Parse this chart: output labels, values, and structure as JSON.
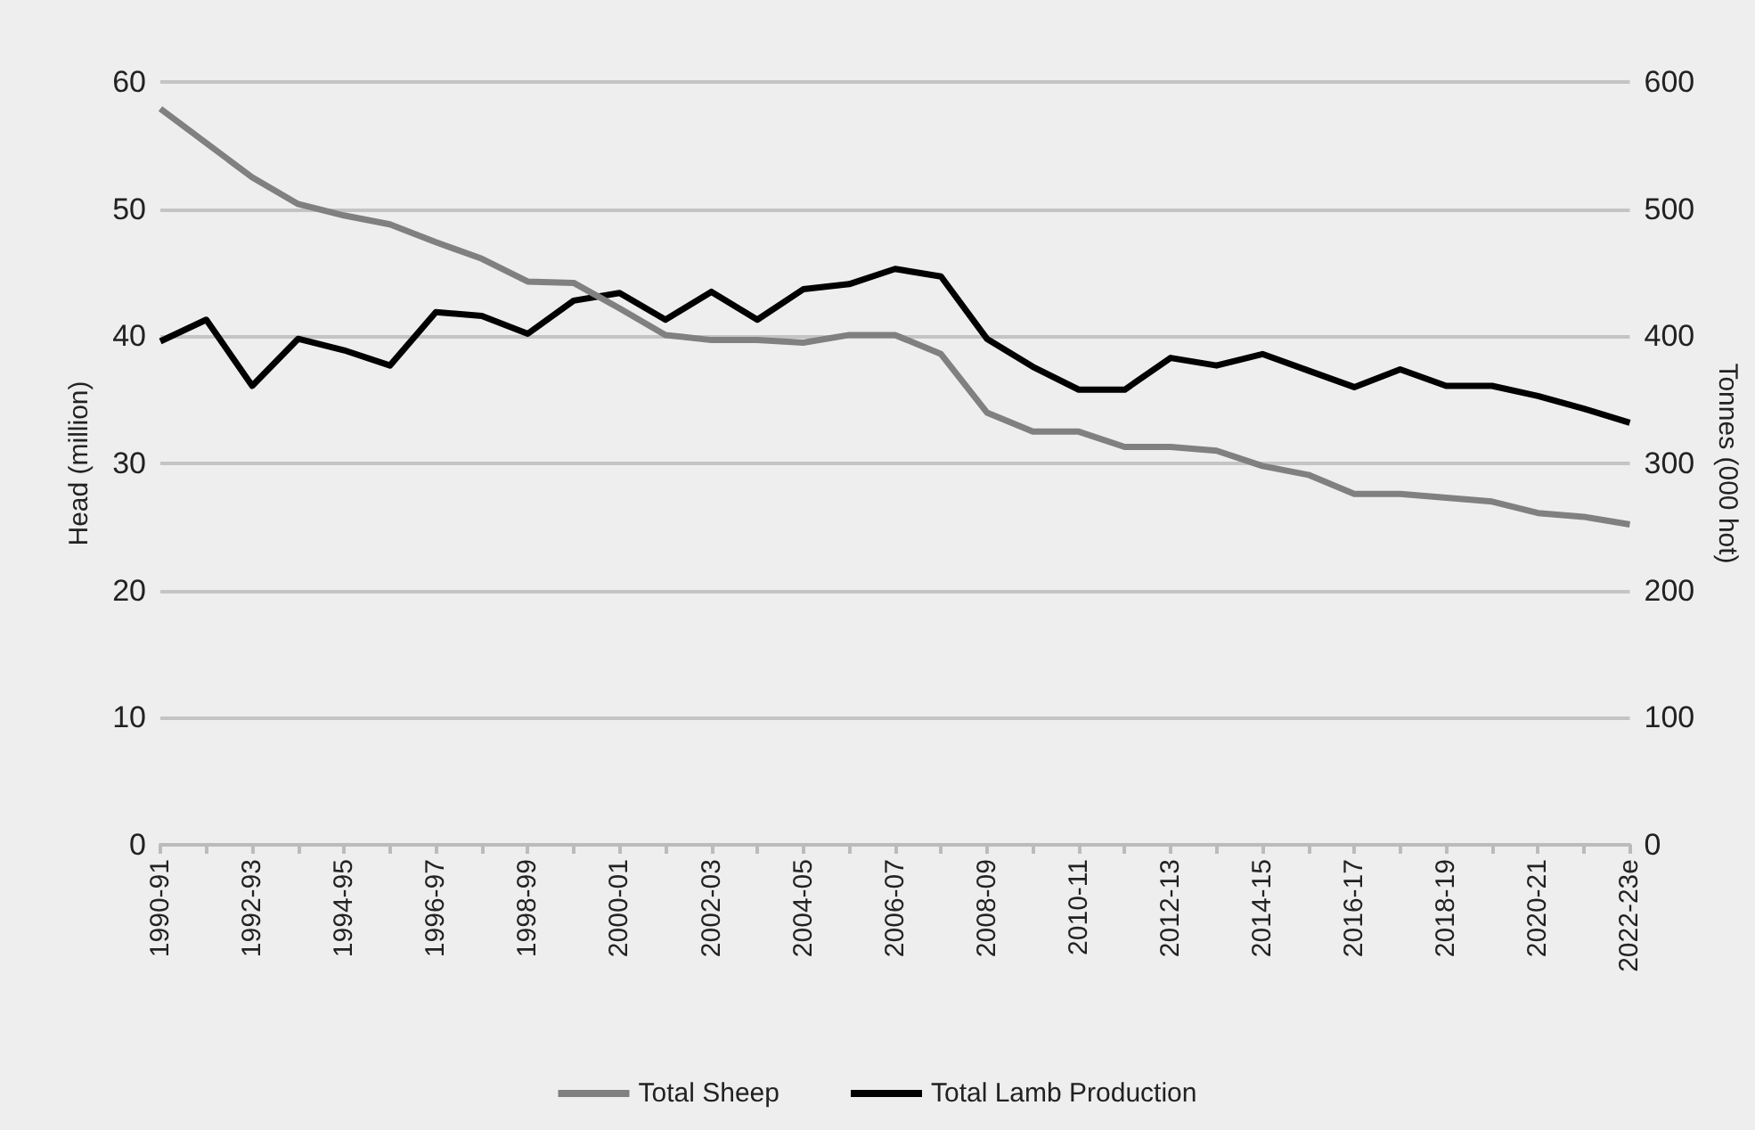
{
  "chart_data": {
    "type": "line",
    "ylabel": "Head (million)",
    "y2label": "Tonnes (000 hot)",
    "categories": [
      "1990-91",
      null,
      "1992-93",
      null,
      "1994-95",
      null,
      "1996-97",
      null,
      "1998-99",
      null,
      "2000-01",
      null,
      "2002-03",
      null,
      "2004-05",
      null,
      "2006-07",
      null,
      "2008-09",
      null,
      "2010-11",
      null,
      "2012-13",
      null,
      "2014-15",
      null,
      "2016-17",
      null,
      "2018-19",
      null,
      "2020-21",
      null,
      "2022-23e"
    ],
    "series": [
      {
        "name": "Total Sheep",
        "color": "#808080",
        "values": [
          57.9,
          55.2,
          52.5,
          50.4,
          49.5,
          48.8,
          47.4,
          46.1,
          44.3,
          44.2,
          42.2,
          40.1,
          39.7,
          39.7,
          39.5,
          40.1,
          40.1,
          38.6,
          34.0,
          32.5,
          32.5,
          31.3,
          31.3,
          31.0,
          29.8,
          29.1,
          27.6,
          27.6,
          27.3,
          27.0,
          26.1,
          25.8,
          25.2
        ]
      },
      {
        "name": "Total Lamb Production",
        "color": "#000000",
        "axis": "y2",
        "values": [
          396,
          413,
          361,
          398,
          389,
          377,
          419,
          416,
          402,
          428,
          434,
          413,
          435,
          413,
          437,
          441,
          453,
          447,
          398,
          376,
          358,
          358,
          383,
          377,
          386,
          373,
          360,
          374,
          361,
          361,
          353,
          343,
          332
        ]
      }
    ],
    "ylim": [
      0,
      60
    ],
    "yticks": [
      0,
      10,
      20,
      30,
      40,
      50,
      60
    ],
    "y2lim": [
      0,
      600
    ],
    "y2ticks": [
      0,
      100,
      200,
      300,
      400,
      500,
      600
    ],
    "grid": "y",
    "legend": "bottom",
    "marker": "none",
    "line_style": "solid"
  }
}
